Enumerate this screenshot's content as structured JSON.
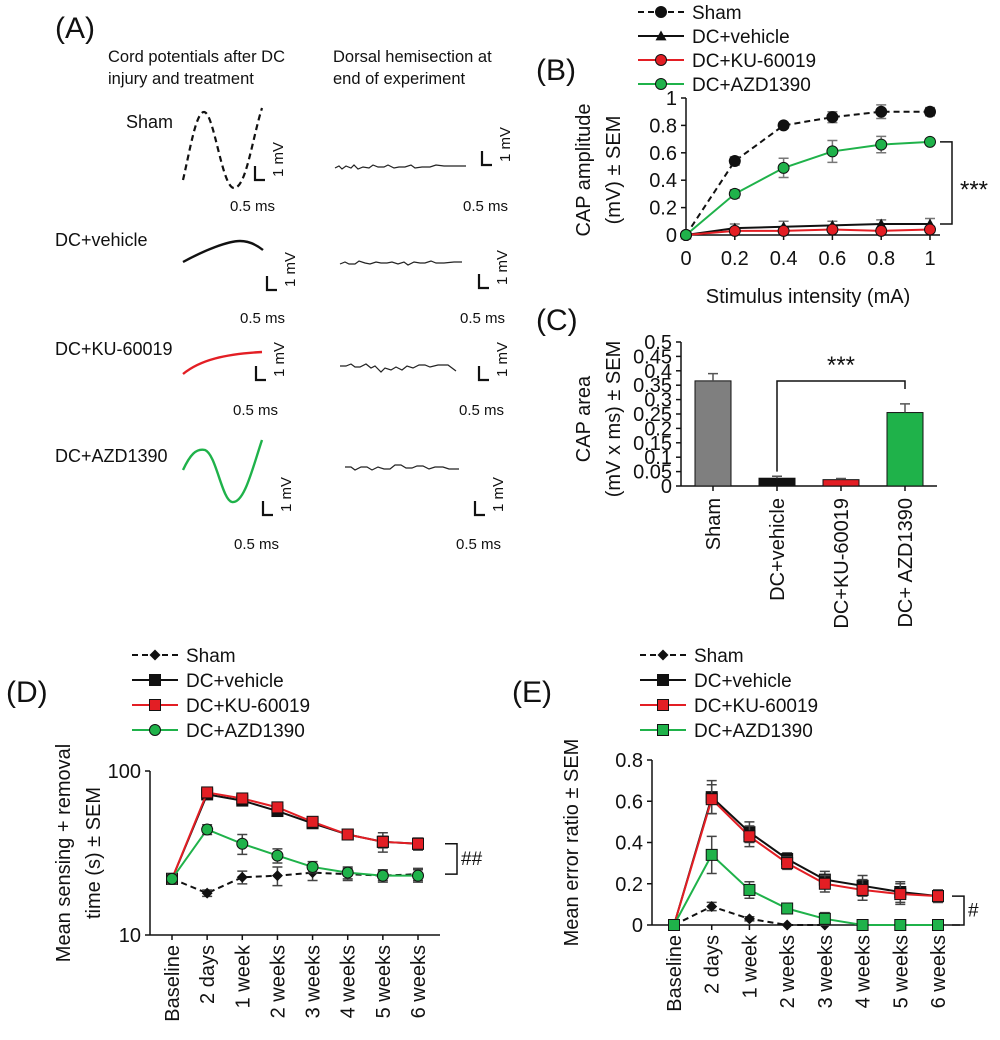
{
  "panel_letters": {
    "A": "(A)",
    "B": "(B)",
    "C": "(C)",
    "D": "(D)",
    "E": "(E)"
  },
  "colors": {
    "sham": "#111111",
    "vehicle": "#111111",
    "ku": "#e31e24",
    "azd": "#1fb24a",
    "sham_bar": "#7f7f7f"
  },
  "panel_a": {
    "col1_title": [
      "Cord potentials after DC",
      "injury and treatment"
    ],
    "col2_title": [
      "Dorsal hemisection at",
      "end of experiment"
    ],
    "rows": [
      {
        "label": "Sham",
        "color": "#111111",
        "dashed": true
      },
      {
        "label": "DC+vehicle",
        "color": "#111111",
        "dashed": false
      },
      {
        "label": "DC+KU-60019",
        "color": "#e31e24",
        "dashed": false
      },
      {
        "label": "DC+AZD1390",
        "color": "#1fb24a",
        "dashed": false
      }
    ],
    "scale_v": "1 mV",
    "scale_t": "0.5 ms"
  },
  "chart_data": [
    {
      "panel": "B",
      "type": "line",
      "xlabel": "Stimulus intensity (mA)",
      "ylabel": [
        "CAP amplitude",
        "(mV) ± SEM"
      ],
      "x": [
        0,
        0.2,
        0.4,
        0.6,
        0.8,
        1
      ],
      "xticks": [
        "0",
        "0.2",
        "0.4",
        "0.6",
        "0.8",
        "1"
      ],
      "ylim": [
        0,
        1
      ],
      "yticks": [
        "0",
        "0.2",
        "0.4",
        "0.6",
        "0.8",
        "1"
      ],
      "series": [
        {
          "name": "Sham",
          "values": [
            0,
            0.54,
            0.8,
            0.86,
            0.9,
            0.9
          ],
          "err": [
            0,
            0.03,
            0.02,
            0.04,
            0.05,
            0.03
          ],
          "marker": "circle",
          "color": "#111111",
          "dashed": true
        },
        {
          "name": "DC+vehicle",
          "values": [
            0,
            0.05,
            0.06,
            0.07,
            0.08,
            0.08
          ],
          "err": [
            0,
            0.03,
            0.04,
            0.03,
            0.03,
            0.04
          ],
          "marker": "triangle",
          "color": "#111111",
          "dashed": false
        },
        {
          "name": "DC+KU-60019",
          "values": [
            0,
            0.03,
            0.03,
            0.04,
            0.03,
            0.04
          ],
          "err": [
            0,
            0.02,
            0.02,
            0.02,
            0.02,
            0.02
          ],
          "marker": "circle",
          "color": "#e31e24",
          "dashed": false
        },
        {
          "name": "DC+AZD1390",
          "values": [
            0,
            0.3,
            0.49,
            0.61,
            0.66,
            0.68
          ],
          "err": [
            0,
            0.03,
            0.07,
            0.08,
            0.06,
            0.02
          ],
          "marker": "circle",
          "color": "#1fb24a",
          "dashed": false
        }
      ],
      "significance": "***"
    },
    {
      "panel": "C",
      "type": "bar",
      "ylabel": [
        "CAP area",
        "(mV x ms) ± SEM"
      ],
      "categories": [
        "Sham",
        "DC+vehicle",
        "DC+KU-60019",
        "DC+ AZD1390"
      ],
      "values": [
        0.365,
        0.027,
        0.022,
        0.255
      ],
      "err": [
        0.025,
        0.007,
        0.004,
        0.03
      ],
      "colors": [
        "#7f7f7f",
        "#111111",
        "#e31e24",
        "#1fb24a"
      ],
      "ylim": [
        0,
        0.5
      ],
      "yticks": [
        "0",
        "0.05",
        "0.1",
        "0.15",
        "0.2",
        "0.25",
        "0.3",
        "0.35",
        "0.4",
        "0.45",
        "0.5"
      ],
      "significance": "***"
    },
    {
      "panel": "D",
      "type": "line",
      "yscale": "log",
      "ylabel": [
        "Mean sensing + removal",
        "time (s) ± SEM"
      ],
      "categories": [
        "Baseline",
        "2 days",
        "1 week",
        "2 weeks",
        "3 weeks",
        "4 weeks",
        "5 weeks",
        "6 weeks"
      ],
      "ylim": [
        10,
        100
      ],
      "yticks": [
        "10",
        "100"
      ],
      "series": [
        {
          "name": "Sham",
          "values": [
            22,
            18,
            22.5,
            23,
            24,
            23.5,
            23,
            23.5
          ],
          "err": [
            1,
            0.8,
            2,
            3,
            2.5,
            2,
            1.5,
            2
          ],
          "marker": "diamond",
          "color": "#111111",
          "dashed": true
        },
        {
          "name": "DC+vehicle",
          "values": [
            22,
            72,
            66,
            57,
            48,
            41,
            37,
            36
          ],
          "err": [
            1,
            3,
            3,
            3,
            3,
            2,
            3,
            3
          ],
          "marker": "square",
          "color": "#111111",
          "dashed": false
        },
        {
          "name": "DC+KU-60019",
          "values": [
            22,
            74,
            68,
            60,
            49,
            41,
            37,
            36
          ],
          "err": [
            1,
            3,
            3,
            3,
            3,
            2,
            5,
            3
          ],
          "marker": "square",
          "color": "#e31e24",
          "dashed": false
        },
        {
          "name": "DC+AZD1390",
          "values": [
            22,
            44,
            36,
            30.5,
            26,
            24,
            23,
            23
          ],
          "err": [
            1.5,
            3,
            5,
            3,
            2,
            2,
            2,
            2
          ],
          "marker": "circle",
          "color": "#1fb24a",
          "dashed": false
        }
      ],
      "significance": "##"
    },
    {
      "panel": "E",
      "type": "line",
      "ylabel": [
        "Mean error ratio ± SEM"
      ],
      "categories": [
        "Baseline",
        "2 days",
        "1 week",
        "2 weeks",
        "3 weeks",
        "4 weeks",
        "5 weeks",
        "6 weeks"
      ],
      "ylim": [
        0,
        0.8
      ],
      "yticks": [
        "0",
        "0.2",
        "0.4",
        "0.6",
        "0.8"
      ],
      "series": [
        {
          "name": "Sham",
          "values": [
            0,
            0.09,
            0.03,
            0.0,
            0.0,
            null,
            null,
            null
          ],
          "err": [
            0,
            0.02,
            0.01,
            0,
            0,
            0,
            0,
            0
          ],
          "marker": "diamond",
          "color": "#111111",
          "dashed": true
        },
        {
          "name": "DC+vehicle",
          "values": [
            0,
            0.62,
            0.45,
            0.32,
            0.22,
            0.19,
            0.16,
            0.14
          ],
          "err": [
            0,
            0.08,
            0.05,
            0.03,
            0.04,
            0.05,
            0.05,
            0.03
          ],
          "marker": "square",
          "color": "#111111",
          "dashed": false
        },
        {
          "name": "DC+KU-60019",
          "values": [
            0,
            0.61,
            0.43,
            0.3,
            0.2,
            0.17,
            0.15,
            0.14
          ],
          "err": [
            0,
            0.07,
            0.05,
            0.03,
            0.04,
            0.05,
            0.05,
            0.03
          ],
          "marker": "square",
          "color": "#e31e24",
          "dashed": false
        },
        {
          "name": "DC+AZD1390",
          "values": [
            0,
            0.34,
            0.17,
            0.08,
            0.03,
            0.0,
            0.0,
            0.0
          ],
          "err": [
            0,
            0.09,
            0.04,
            0.01,
            0.03,
            0,
            0,
            0
          ],
          "marker": "square",
          "color": "#1fb24a",
          "dashed": false
        }
      ],
      "significance": "#"
    }
  ]
}
